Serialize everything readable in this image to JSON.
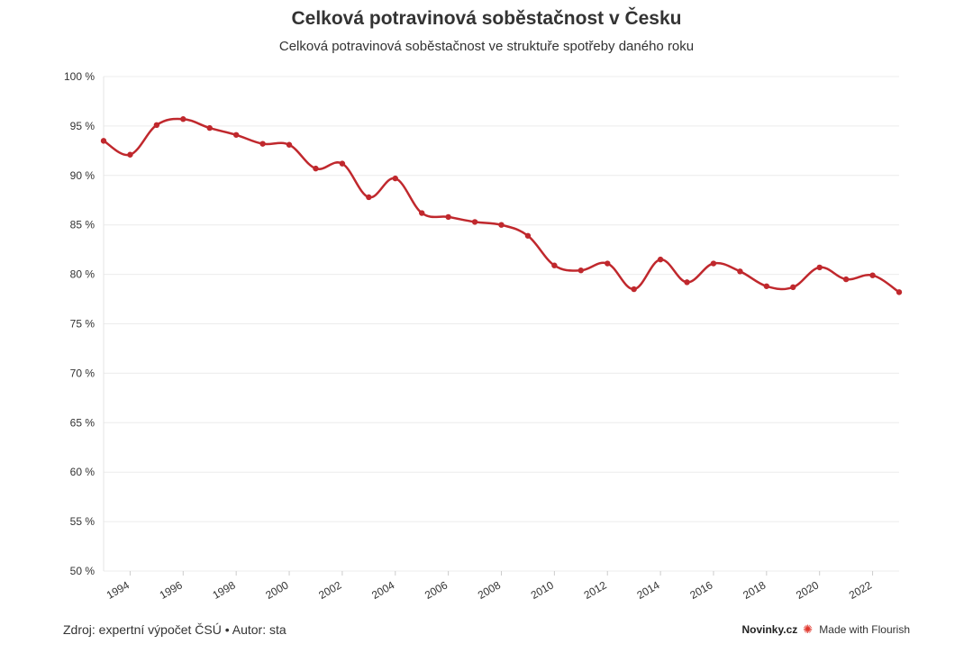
{
  "title": "Celková potravinová soběstačnost v Česku",
  "subtitle": "Celková potravinová soběstačnost ve struktuře spotřeby daného roku",
  "footer": {
    "source": "Zdroj: expertní výpočet ČSÚ • Autor: sta",
    "brand": "Novinky.cz",
    "made_with": "Made with Flourish",
    "flourish_icon": "flourish-icon"
  },
  "colors": {
    "line": "#c0282d",
    "grid": "#ececec",
    "text": "#333333"
  },
  "chart_data": {
    "type": "line",
    "title": "Celková potravinová soběstačnost v Česku",
    "subtitle": "Celková potravinová soběstačnost ve struktuře spotřeby daného roku",
    "xlabel": "",
    "ylabel": "",
    "ylim": [
      50,
      100
    ],
    "xlim": [
      1993,
      2023
    ],
    "grid": true,
    "y_ticks": [
      50,
      55,
      60,
      65,
      70,
      75,
      80,
      85,
      90,
      95,
      100
    ],
    "y_tick_labels": [
      "50 %",
      "55 %",
      "60 %",
      "65 %",
      "70 %",
      "75 %",
      "80 %",
      "85 %",
      "90 %",
      "95 %",
      "100 %"
    ],
    "x_ticks": [
      1994,
      1996,
      1998,
      2000,
      2002,
      2004,
      2006,
      2008,
      2010,
      2012,
      2014,
      2016,
      2018,
      2020,
      2022
    ],
    "x_tick_labels": [
      "1994",
      "1996",
      "1998",
      "2000",
      "2002",
      "2004",
      "2006",
      "2008",
      "2010",
      "2012",
      "2014",
      "2016",
      "2018",
      "2020",
      "2022"
    ],
    "series": [
      {
        "x": [
          1993,
          1994,
          1995,
          1996,
          1997,
          1998,
          1999,
          2000,
          2001,
          2002,
          2003,
          2004,
          2005,
          2006,
          2007,
          2008,
          2009,
          2010,
          2011,
          2012,
          2013,
          2014,
          2015,
          2016,
          2017,
          2018,
          2019,
          2020,
          2021,
          2022,
          2023
        ],
        "values": [
          93.5,
          92.1,
          95.1,
          95.7,
          94.8,
          94.1,
          93.2,
          93.1,
          90.7,
          91.2,
          87.8,
          89.7,
          86.2,
          85.8,
          85.3,
          85.0,
          83.9,
          80.9,
          80.4,
          81.1,
          78.5,
          81.5,
          79.2,
          81.1,
          80.3,
          78.8,
          78.7,
          80.7,
          79.5,
          79.9,
          78.2
        ]
      }
    ]
  }
}
